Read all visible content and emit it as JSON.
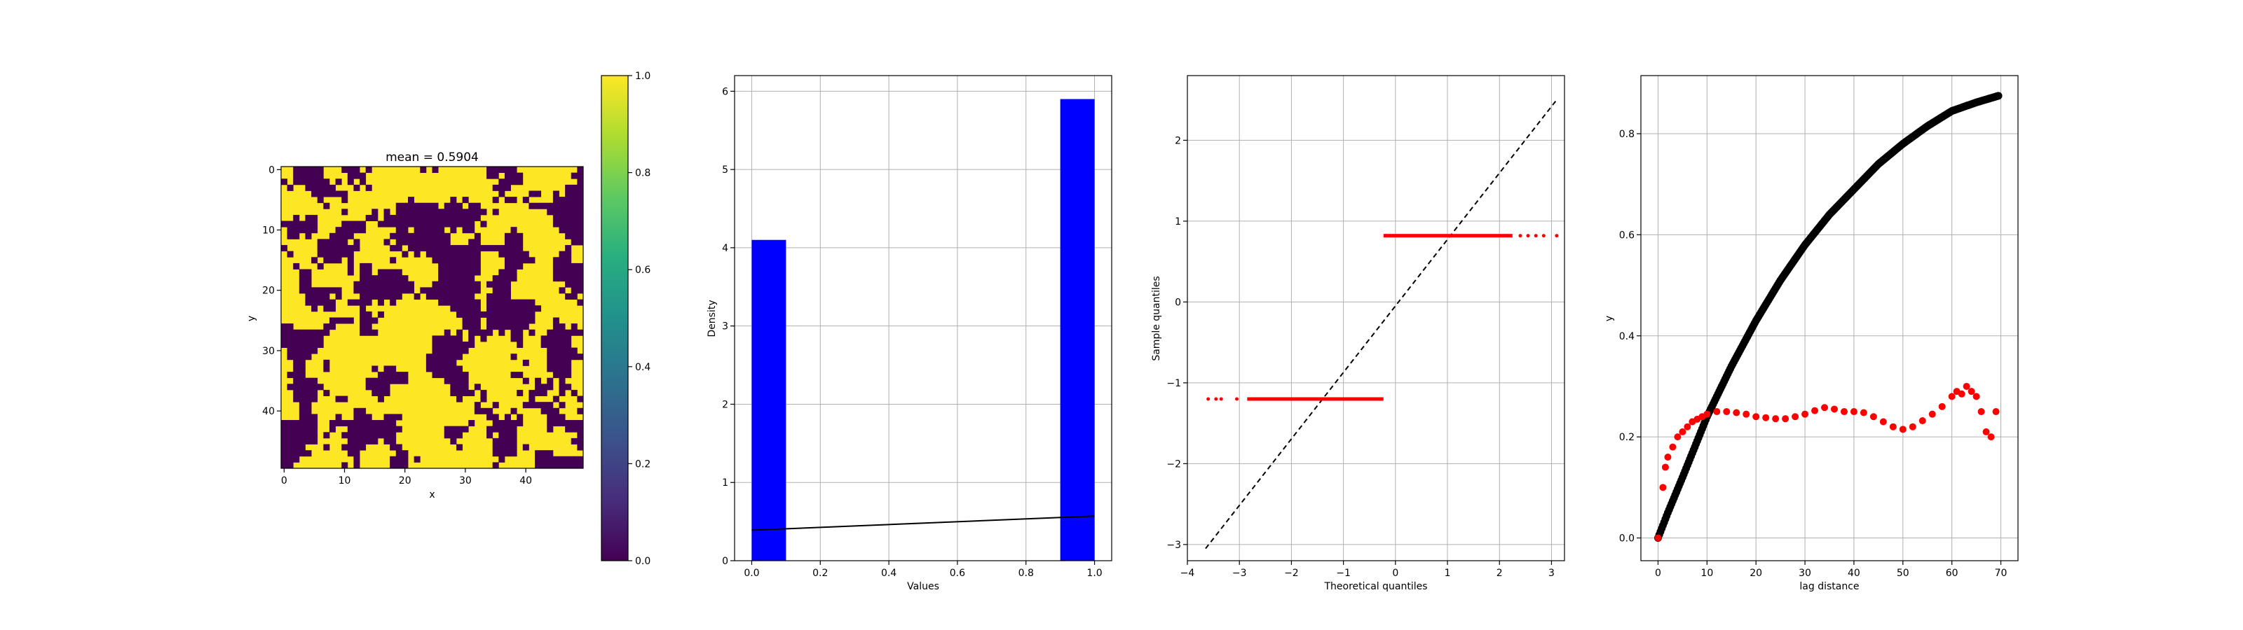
{
  "figure": {
    "background": "#ffffff",
    "viridis_dark": "#440154",
    "viridis_yellow": "#fde725"
  },
  "chart_data": [
    {
      "id": "image",
      "type": "heatmap",
      "title": "mean = 0.5904",
      "xlabel": "x",
      "ylabel": "y",
      "x_ticks": [
        "0",
        "10",
        "20",
        "30",
        "40"
      ],
      "y_ticks": [
        "0",
        "10",
        "20",
        "30",
        "40"
      ],
      "grid_size": 50,
      "mean": 0.5904,
      "seed": 5904,
      "colormap": "viridis",
      "colorbar": {
        "range": [
          0.0,
          1.0
        ],
        "ticks": [
          "0.0",
          "0.2",
          "0.4",
          "0.6",
          "0.8",
          "1.0"
        ]
      }
    },
    {
      "id": "histogram",
      "type": "bar",
      "xlabel": "Values",
      "ylabel": "Density",
      "xlim": [
        -0.05,
        1.05
      ],
      "ylim": [
        0,
        6.2
      ],
      "x_ticks": [
        "0.0",
        "0.2",
        "0.4",
        "0.6",
        "0.8",
        "1.0"
      ],
      "y_ticks": [
        "0",
        "1",
        "2",
        "3",
        "4",
        "5",
        "6"
      ],
      "bins": [
        {
          "x0": 0.0,
          "x1": 0.1,
          "value": 4.1
        },
        {
          "x0": 0.9,
          "x1": 1.0,
          "value": 5.9
        }
      ],
      "line": {
        "x": [
          0.0,
          1.0
        ],
        "y": [
          0.39,
          0.57
        ]
      },
      "bar_color": "#0000ff",
      "grid": true
    },
    {
      "id": "qqplot",
      "type": "scatter",
      "xlabel": "Theoretical quantiles",
      "ylabel": "Sample quantiles",
      "xlim": [
        -4,
        3.25
      ],
      "ylim": [
        -3.2,
        2.8
      ],
      "x_ticks": [
        "−4",
        "−3",
        "−2",
        "−1",
        "0",
        "1",
        "2",
        "3"
      ],
      "y_ticks": [
        "−3",
        "−2",
        "−1",
        "0",
        "1",
        "2"
      ],
      "reference_line": {
        "x": [
          -3.65,
          3.1
        ],
        "y": [
          -3.05,
          2.5
        ]
      },
      "lower_group": {
        "y": -1.2,
        "x_range": [
          -3.6,
          -0.23
        ]
      },
      "upper_group": {
        "y": 0.82,
        "x_range": [
          -0.23,
          3.1
        ]
      },
      "marker_color": "#ff0000",
      "grid": true
    },
    {
      "id": "variogram",
      "type": "scatter",
      "xlabel": "lag distance",
      "ylabel": "y",
      "xlim": [
        -3.5,
        73.5
      ],
      "ylim": [
        -0.045,
        0.915
      ],
      "x_ticks": [
        "0",
        "10",
        "20",
        "30",
        "40",
        "50",
        "60",
        "70"
      ],
      "y_ticks": [
        "0.0",
        "0.2",
        "0.4",
        "0.6",
        "0.8"
      ],
      "model_curve": {
        "x": [
          0,
          2,
          5,
          10,
          15,
          20,
          25,
          30,
          35,
          40,
          45,
          50,
          55,
          60,
          65,
          69.5
        ],
        "y": [
          0.0,
          0.05,
          0.12,
          0.24,
          0.34,
          0.43,
          0.51,
          0.58,
          0.64,
          0.69,
          0.74,
          0.78,
          0.815,
          0.845,
          0.862,
          0.875
        ],
        "color": "#000000"
      },
      "empirical": {
        "x": [
          0,
          1,
          1.5,
          2,
          3,
          4,
          5,
          6,
          7,
          8,
          9,
          10,
          12,
          14,
          16,
          18,
          20,
          22,
          24,
          26,
          28,
          30,
          32,
          34,
          36,
          38,
          40,
          42,
          44,
          46,
          48,
          50,
          52,
          54,
          56,
          58,
          60,
          61,
          62,
          63,
          64,
          65,
          66,
          67,
          68,
          69
        ],
        "y": [
          0.0,
          0.1,
          0.14,
          0.16,
          0.18,
          0.2,
          0.21,
          0.22,
          0.23,
          0.235,
          0.24,
          0.245,
          0.25,
          0.25,
          0.248,
          0.245,
          0.24,
          0.238,
          0.236,
          0.236,
          0.24,
          0.245,
          0.252,
          0.258,
          0.255,
          0.25,
          0.25,
          0.248,
          0.24,
          0.23,
          0.22,
          0.215,
          0.22,
          0.232,
          0.245,
          0.26,
          0.28,
          0.29,
          0.285,
          0.3,
          0.29,
          0.28,
          0.25,
          0.21,
          0.2,
          0.25
        ],
        "color": "#ff0000"
      },
      "grid": true
    }
  ]
}
